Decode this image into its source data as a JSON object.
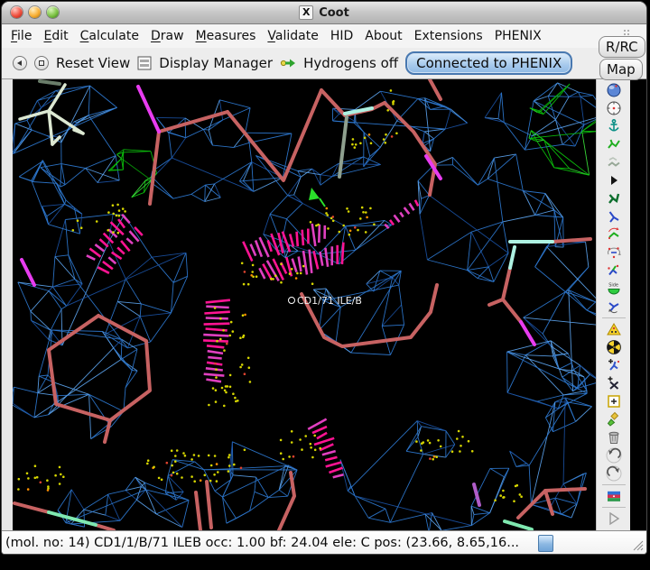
{
  "window": {
    "title": "Coot",
    "x_icon": "X"
  },
  "menubar": {
    "items": [
      {
        "label": "File",
        "underline": true
      },
      {
        "label": "Edit",
        "underline": true
      },
      {
        "label": "Calculate",
        "underline": true
      },
      {
        "label": "Draw",
        "underline": true
      },
      {
        "label": "Measures",
        "underline": true
      },
      {
        "label": "Validate",
        "underline": true
      },
      {
        "label": "HID",
        "underline": false
      },
      {
        "label": "About",
        "underline": false
      },
      {
        "label": "Extensions",
        "underline": false
      },
      {
        "label": "PHENIX",
        "underline": false
      }
    ]
  },
  "toolbar": {
    "reset_view_label": "Reset View",
    "display_manager_label": "Display Manager",
    "hydrogens_label": "Hydrogens off",
    "phenix_button_label": "Connected to PHENIX"
  },
  "float_buttons": {
    "rrc_label": "R/RC",
    "map_label": "Map"
  },
  "canvas": {
    "atom_label": "CD1/71 ILE/B"
  },
  "sidebar": {
    "icons": [
      {
        "name": "sphere-refine-icon",
        "type": "globe"
      },
      {
        "name": "regularize-zone-icon",
        "type": "clock"
      },
      {
        "name": "fix-atom-anchor-icon",
        "type": "anchor"
      },
      {
        "name": "rigid-body-fit-icon",
        "type": "mol-green"
      },
      {
        "name": "rotate-translate-icon",
        "type": "mol-gray"
      },
      {
        "name": "auto-fit-rotamer-icon",
        "type": "play-small"
      },
      {
        "name": "rotamers-icon",
        "type": "mol-darkgreen"
      },
      {
        "name": "edit-chi-angles-icon",
        "type": "mol-blue"
      },
      {
        "name": "torsion-general-icon",
        "type": "mol-rotate"
      },
      {
        "name": "flip-peptide-icon",
        "type": "mol-dots-rotate"
      },
      {
        "name": "sidechain-flip-icon",
        "type": "mol-flip"
      },
      {
        "name": "side-180-flip-icon",
        "type": "side-disc",
        "label": "Side"
      },
      {
        "name": "jed-flip-icon",
        "type": "mol-arrow"
      },
      {
        "type": "sep"
      },
      {
        "name": "mutate-autofit-icon",
        "type": "warn-triangle"
      },
      {
        "name": "simple-mutate-icon",
        "type": "radioactive"
      },
      {
        "name": "add-terminal-residue-icon",
        "type": "mol-plus-blue"
      },
      {
        "name": "add-alt-conf-icon",
        "type": "mol-plus-dark"
      },
      {
        "name": "place-atom-icon",
        "type": "square-plus"
      },
      {
        "name": "fill-partial-residue-icon",
        "type": "paintbrush"
      },
      {
        "name": "delete-item-icon",
        "type": "trash"
      },
      {
        "name": "undo-icon",
        "type": "undo"
      },
      {
        "name": "redo-icon",
        "type": "redo"
      },
      {
        "type": "sep"
      },
      {
        "name": "flag-icon",
        "type": "flag"
      },
      {
        "type": "sep"
      },
      {
        "name": "run-script-icon",
        "type": "play-big"
      }
    ]
  },
  "statusbar": {
    "text": "(mol. no: 14)  CD1/1/B/71 ILEB occ:  1.00 bf: 24.04 ele:  C pos: (23.66, 8.65,16..."
  },
  "colors": {
    "mesh_blue": "#2d76cc",
    "mesh_blue_light": "#5aa0e8",
    "mesh_blue_dark": "#1a4f9e",
    "mesh_green": "#0cc20c",
    "stick_coral": "#c76262",
    "stick_magenta": "#e83cf0",
    "stick_violet": "#b05cc8",
    "stick_cyan": "#aef2e2",
    "stick_mint": "#7fe8b0",
    "stick_sage": "#8fa08f",
    "pale_cross": "#dce8d2",
    "clash_pink1": "#ff1493",
    "clash_pink2": "#e040c0",
    "dot_yellow": "#d6d600",
    "dot_red": "#e04430",
    "dot_orange": "#ff9100",
    "arrow_green": "#2ae02a",
    "label_white": "#efefef"
  }
}
